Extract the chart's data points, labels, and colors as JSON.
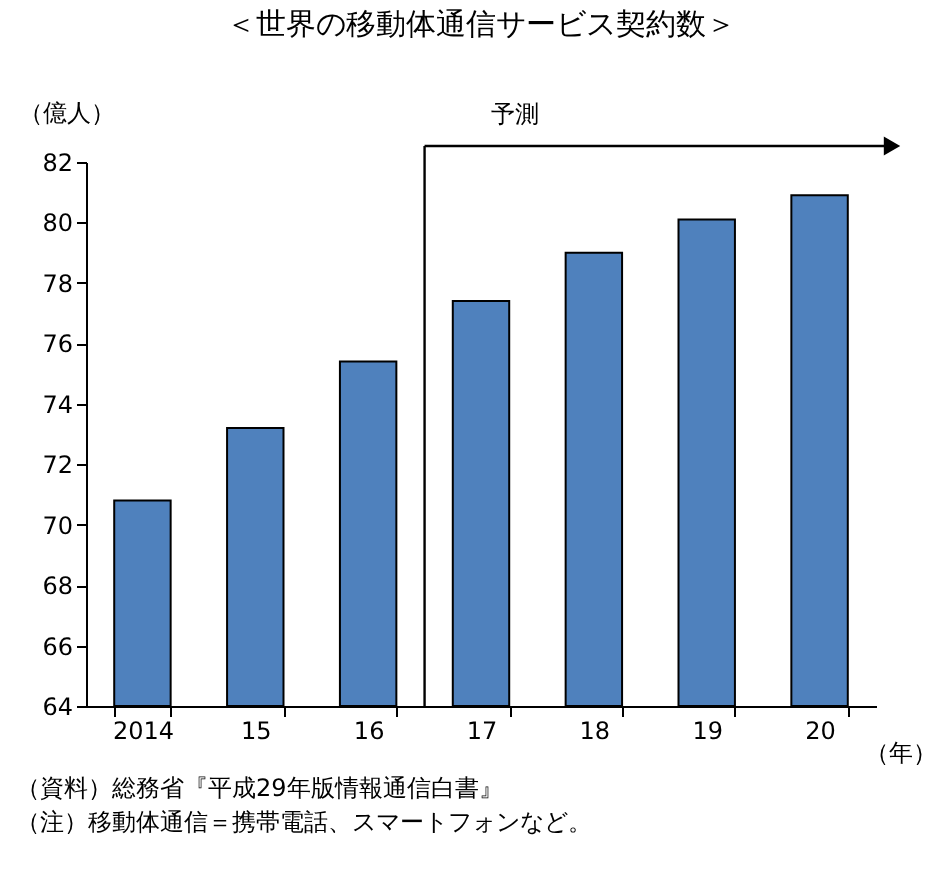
{
  "chart_data": {
    "type": "bar",
    "title": "＜世界の移動体通信サービス契約数＞",
    "ylabel": "（億人）",
    "xlabel": "（年）",
    "categories": [
      "2014",
      "15",
      "16",
      "17",
      "18",
      "19",
      "20"
    ],
    "values": [
      70.8,
      73.2,
      75.4,
      77.4,
      79.0,
      80.1,
      80.9
    ],
    "color": "#4f81bd",
    "ylim": [
      64,
      82
    ],
    "yticks": [
      64,
      66,
      68,
      70,
      72,
      74,
      76,
      78,
      80,
      82
    ],
    "grid": false,
    "annotations": [
      "予測",
      "（資料）総務省『平成29年版情報通信白書』",
      "（注）移動体通信＝携帯電話、スマートフォンなど。"
    ]
  }
}
